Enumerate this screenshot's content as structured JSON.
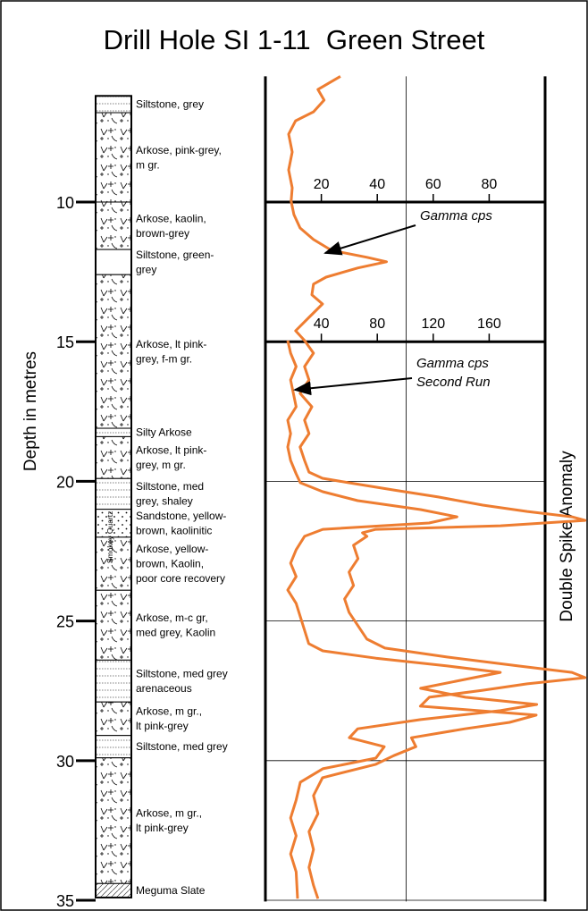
{
  "chart_data": {
    "type": "well-log",
    "title": "Drill Hole SI 1-11  Green Street",
    "y_label": "Depth in metres",
    "side_label": "Double Spike Anomaly",
    "column_label": "Smokey Quartz",
    "ylim": [
      5.5,
      35.3
    ],
    "yticks": [
      10,
      15,
      20,
      25,
      30,
      35
    ],
    "grid": true,
    "x_axes": [
      {
        "xlim": [
          0,
          100
        ],
        "xticks": [
          20,
          40,
          60,
          80
        ],
        "at_depth": 10
      },
      {
        "xlim": [
          0,
          200
        ],
        "xticks": [
          40,
          80,
          120,
          160
        ],
        "at_depth": 15
      }
    ],
    "lithology": [
      {
        "top": 6.2,
        "bottom": 6.8,
        "pattern": "siltstone",
        "label_lines": [
          "Siltstone, grey"
        ]
      },
      {
        "top": 6.8,
        "bottom": 10,
        "pattern": "arkose",
        "label_lines": [
          "Arkose, pink-grey,",
          "m gr."
        ]
      },
      {
        "top": 10,
        "bottom": 11.7,
        "pattern": "arkose",
        "label_lines": [
          "Arkose, kaolin,",
          "brown-grey"
        ]
      },
      {
        "top": 11.7,
        "bottom": 12.6,
        "pattern": "plain",
        "label_lines": [
          "Siltstone, green-",
          "grey"
        ]
      },
      {
        "top": 12.6,
        "bottom": 18.1,
        "pattern": "arkose",
        "label_lines": [
          "Arkose, lt pink-",
          "grey, f-m gr."
        ]
      },
      {
        "top": 18.1,
        "bottom": 18.4,
        "pattern": "siltstone",
        "label_lines": [
          "Silty Arkose"
        ]
      },
      {
        "top": 18.4,
        "bottom": 19.9,
        "pattern": "arkose",
        "label_lines": [
          "Arkose, lt pink-",
          "grey, m gr."
        ]
      },
      {
        "top": 19.9,
        "bottom": 21.0,
        "pattern": "siltstone",
        "label_lines": [
          "Siltstone, med",
          "grey, shaley"
        ]
      },
      {
        "top": 21.0,
        "bottom": 22.0,
        "pattern": "sandstone",
        "label_lines": [
          "Sandstone, yellow-",
          "brown, kaolinitic"
        ]
      },
      {
        "top": 22.0,
        "bottom": 23.9,
        "pattern": "arkose",
        "label_lines": [
          "Arkose, yellow-",
          "brown, Kaolin,",
          "poor core recovery"
        ]
      },
      {
        "top": 23.9,
        "bottom": 26.4,
        "pattern": "arkose",
        "label_lines": [
          "Arkose, m-c gr,",
          "med grey, Kaolin"
        ]
      },
      {
        "top": 26.4,
        "bottom": 27.9,
        "pattern": "siltstone",
        "label_lines": [
          "Siltstone, med grey",
          "arenaceous"
        ]
      },
      {
        "top": 27.9,
        "bottom": 29.1,
        "pattern": "arkose",
        "label_lines": [
          "Arkose, m gr.,",
          "lt pink-grey"
        ]
      },
      {
        "top": 29.1,
        "bottom": 29.9,
        "pattern": "siltstone",
        "label_lines": [
          "Siltstone, med grey"
        ]
      },
      {
        "top": 29.9,
        "bottom": 34.4,
        "pattern": "arkose",
        "label_lines": [
          "Arkose, m gr.,",
          "lt pink-grey"
        ]
      },
      {
        "top": 34.4,
        "bottom": 34.9,
        "pattern": "slate",
        "label_lines": [
          "Meguma Slate"
        ]
      }
    ],
    "series": [
      {
        "label_lines": [
          "Gamma cps"
        ],
        "color": "#ee7d31",
        "axis": 0,
        "depths": [
          5.5,
          5.97,
          6.35,
          6.77,
          7.09,
          7.57,
          8.21,
          8.85,
          9.49,
          9.97,
          10.45,
          10.93,
          11.34,
          11.73,
          11.98,
          12.14,
          12.36,
          12.69,
          12.94,
          13.32,
          13.65,
          14.13,
          14.61,
          14.96,
          15.41,
          15.89,
          16.37,
          16.85,
          17.33,
          17.81,
          18.29,
          18.77,
          19.25,
          19.67,
          19.89,
          20.05,
          20.31,
          20.56,
          20.85,
          21.08,
          21.27,
          21.4,
          21.59,
          21.72,
          21.84,
          21.97,
          22.29,
          22.77,
          23.25,
          23.73,
          24.21,
          24.69,
          25.17,
          25.65,
          25.97,
          26.29,
          26.61,
          26.84,
          27.03,
          27.25,
          27.48,
          27.73,
          28.05,
          28.37,
          28.63,
          28.86,
          29.18,
          29.5,
          29.82,
          30.13,
          30.61,
          31.25,
          31.9,
          32.54,
          33.18,
          33.82,
          34.46,
          34.94
        ],
        "values": [
          26.8,
          18.8,
          21.0,
          17.2,
          10.8,
          8.3,
          9.6,
          8.3,
          9.6,
          9.2,
          10.2,
          12.4,
          17.2,
          23.6,
          36.3,
          43.3,
          33.1,
          21.7,
          17.2,
          16.6,
          20.4,
          15.6,
          10.8,
          14.0,
          17.2,
          14.0,
          15.6,
          12.4,
          16.6,
          14.0,
          15.6,
          12.4,
          14.0,
          15.6,
          20.4,
          29.9,
          45.9,
          61.8,
          77.7,
          93.6,
          109.6,
          114.3,
          84.1,
          39.5,
          34.7,
          36.3,
          31.5,
          33.1,
          29.9,
          31.5,
          28.3,
          29.9,
          33.1,
          36.3,
          42.7,
          64.9,
          90.4,
          109.6,
          114.3,
          93.6,
          77.7,
          58.6,
          55.4,
          96.8,
          87.3,
          71.3,
          52.2,
          53.8,
          45.9,
          39.5,
          20.4,
          17.2,
          18.8,
          15.6,
          17.2,
          15.6,
          17.2,
          18.8
        ]
      },
      {
        "label_lines": [
          "Gamma cps",
          "Second Run"
        ],
        "color": "#ee7d31",
        "axis": 1,
        "depths": [
          14.96,
          15.41,
          15.89,
          16.37,
          16.85,
          17.33,
          17.81,
          18.29,
          18.77,
          19.25,
          19.73,
          20.05,
          20.37,
          20.69,
          21.01,
          21.27,
          21.49,
          21.72,
          21.97,
          22.45,
          22.93,
          23.41,
          23.89,
          24.37,
          24.85,
          25.33,
          25.81,
          26.07,
          26.33,
          26.61,
          26.84,
          27.09,
          27.41,
          27.73,
          27.99,
          28.21,
          28.53,
          28.86,
          29.18,
          29.5,
          29.91,
          30.29,
          30.77,
          31.41,
          32.05,
          32.69,
          33.34,
          33.98,
          34.94
        ],
        "values": [
          16,
          18,
          22,
          18,
          20,
          22,
          16,
          18,
          16,
          18,
          22,
          25,
          41,
          66,
          111,
          137,
          117,
          41,
          28,
          22,
          18,
          22,
          16,
          22,
          25,
          28,
          31,
          41,
          79,
          130,
          168,
          143,
          111,
          143,
          194,
          168,
          111,
          66,
          60,
          85,
          79,
          41,
          25,
          22,
          18,
          22,
          18,
          22,
          23
        ]
      }
    ]
  }
}
